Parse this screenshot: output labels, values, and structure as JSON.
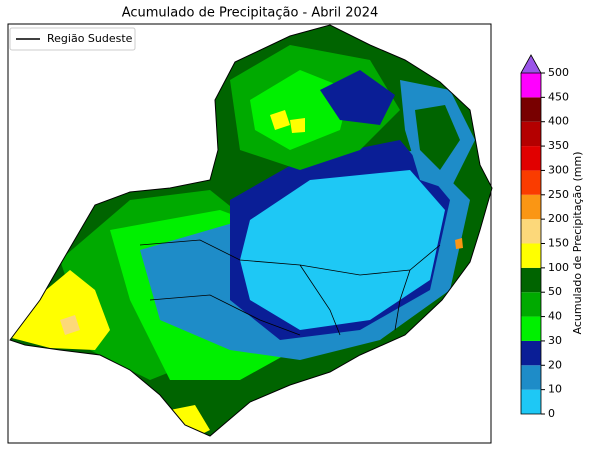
{
  "title": "Acumulado de Precipitação - Abril 2024",
  "legend": {
    "label": "Região Sudeste",
    "color": "#000000"
  },
  "colorbar": {
    "label": "Acumulado de Precipitação (mm)",
    "levels": [
      0,
      10,
      20,
      30,
      40,
      50,
      100,
      150,
      200,
      250,
      300,
      350,
      400,
      450,
      500
    ],
    "colors": [
      "#1ec8f5",
      "#1e8cc8",
      "#0a1e96",
      "#00f000",
      "#00aa00",
      "#006400",
      "#ffff00",
      "#fcd87a",
      "#fa9614",
      "#fa3c00",
      "#e10000",
      "#b40000",
      "#780000",
      "#ff00ff"
    ],
    "extend_color": "#9a55e8"
  }
}
